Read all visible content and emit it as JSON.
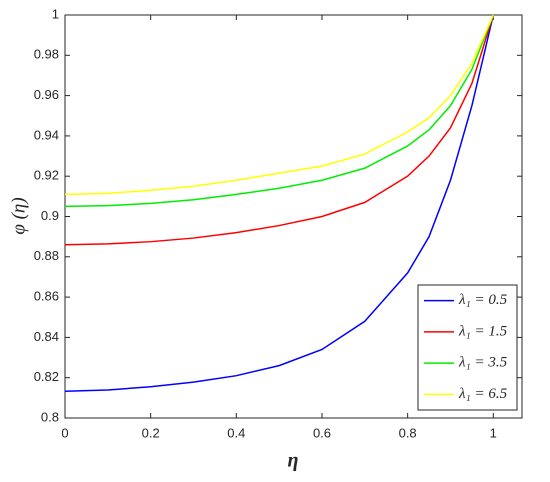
{
  "chart_data": {
    "type": "line",
    "xlabel": "η",
    "ylabel": "φ (η)",
    "x": [
      0,
      0.1,
      0.2,
      0.3,
      0.4,
      0.5,
      0.6,
      0.7,
      0.8,
      0.85,
      0.9,
      0.95,
      1
    ],
    "series": [
      {
        "name": "λ₁ = 0.5",
        "color": "#0000ff",
        "values": [
          0.8133,
          0.8139,
          0.8155,
          0.8178,
          0.821,
          0.826,
          0.834,
          0.848,
          0.872,
          0.89,
          0.918,
          0.955,
          1
        ]
      },
      {
        "name": "λ₁ = 1.5",
        "color": "#ff0000",
        "values": [
          0.886,
          0.8864,
          0.8875,
          0.8893,
          0.892,
          0.8955,
          0.9,
          0.907,
          0.92,
          0.93,
          0.944,
          0.966,
          1
        ]
      },
      {
        "name": "λ₁ = 3.5",
        "color": "#00ee00",
        "values": [
          0.905,
          0.9054,
          0.9065,
          0.9083,
          0.911,
          0.914,
          0.918,
          0.924,
          0.935,
          0.943,
          0.955,
          0.973,
          1
        ]
      },
      {
        "name": "λ₁ = 6.5",
        "color": "#ffff00",
        "values": [
          0.911,
          0.9115,
          0.913,
          0.915,
          0.918,
          0.9215,
          0.925,
          0.931,
          0.942,
          0.949,
          0.96,
          0.976,
          1
        ]
      }
    ],
    "xlim": [
      0,
      1.067
    ],
    "ylim": [
      0.8,
      1
    ],
    "xticks": [
      0,
      0.2,
      0.4,
      0.6,
      0.8,
      1
    ],
    "yticks": [
      0.8,
      0.82,
      0.84,
      0.86,
      0.88,
      0.9,
      0.92,
      0.94,
      0.96,
      0.98,
      1
    ],
    "legend": "lower right",
    "grid": false
  }
}
